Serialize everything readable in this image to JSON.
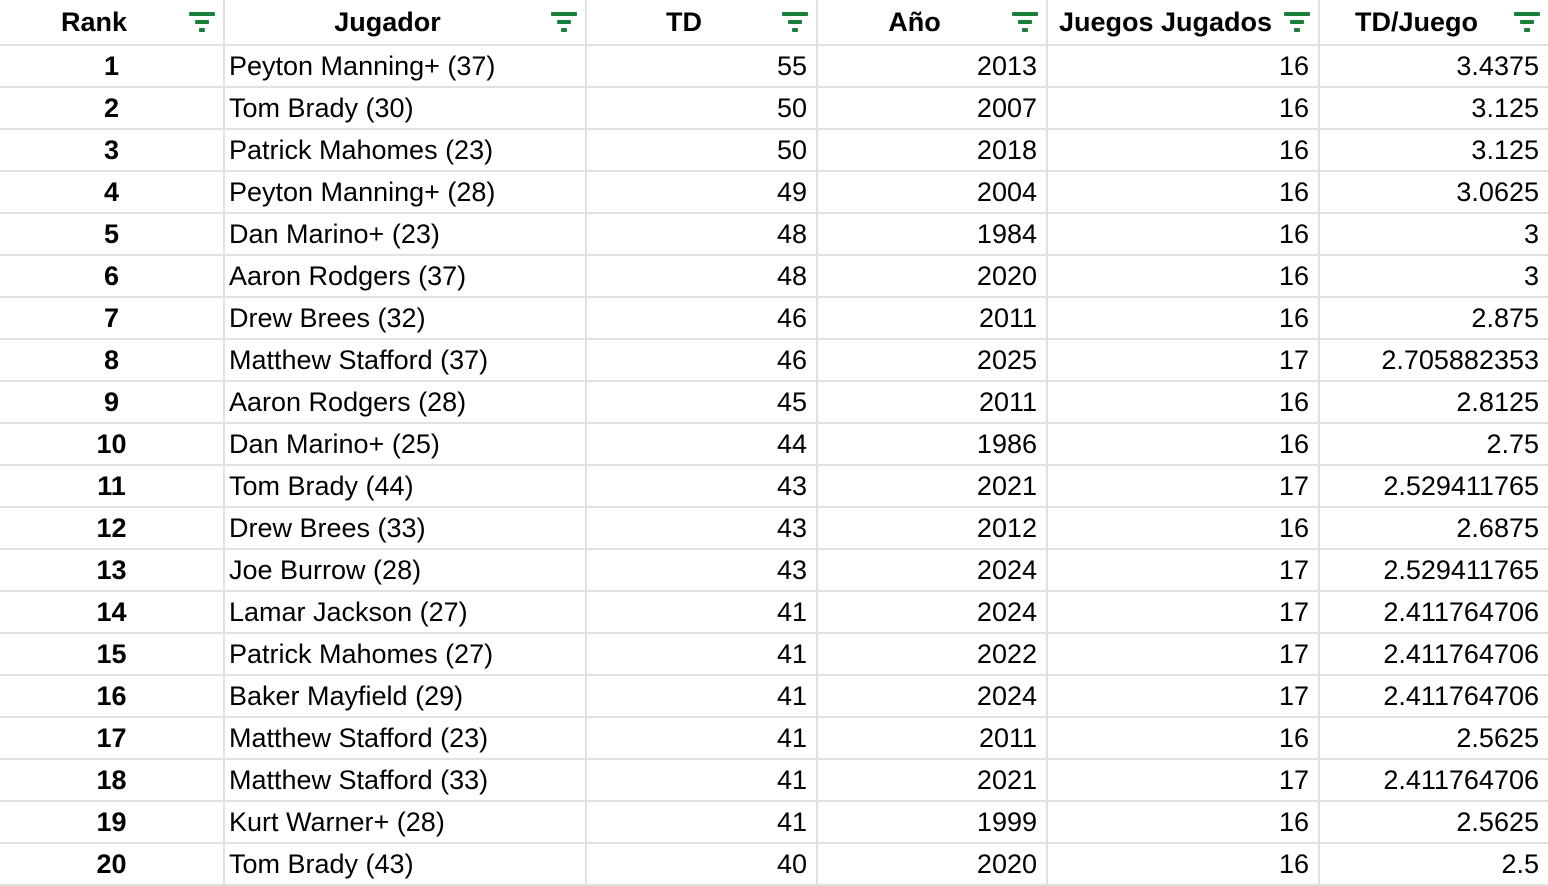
{
  "colors": {
    "filter_icon_green": "#188038",
    "gridline": "#e1e1e1",
    "text": "#000000",
    "background": "#ffffff"
  },
  "table": {
    "columns": [
      {
        "key": "rank",
        "label": "Rank",
        "align": "center"
      },
      {
        "key": "player",
        "label": "Jugador",
        "align": "left"
      },
      {
        "key": "td",
        "label": "TD",
        "align": "right"
      },
      {
        "key": "year",
        "label": "Año",
        "align": "right"
      },
      {
        "key": "games",
        "label": "Juegos Jugados",
        "align": "right"
      },
      {
        "key": "td_per_game",
        "label": "TD/Juego",
        "align": "right"
      }
    ],
    "rows": [
      {
        "rank": "1",
        "player": "Peyton Manning+ (37)",
        "td": "55",
        "year": "2013",
        "games": "16",
        "td_per_game": "3.4375"
      },
      {
        "rank": "2",
        "player": "Tom Brady (30)",
        "td": "50",
        "year": "2007",
        "games": "16",
        "td_per_game": "3.125"
      },
      {
        "rank": "3",
        "player": "Patrick Mahomes (23)",
        "td": "50",
        "year": "2018",
        "games": "16",
        "td_per_game": "3.125"
      },
      {
        "rank": "4",
        "player": "Peyton Manning+ (28)",
        "td": "49",
        "year": "2004",
        "games": "16",
        "td_per_game": "3.0625"
      },
      {
        "rank": "5",
        "player": "Dan Marino+ (23)",
        "td": "48",
        "year": "1984",
        "games": "16",
        "td_per_game": "3"
      },
      {
        "rank": "6",
        "player": "Aaron Rodgers (37)",
        "td": "48",
        "year": "2020",
        "games": "16",
        "td_per_game": "3"
      },
      {
        "rank": "7",
        "player": "Drew Brees (32)",
        "td": "46",
        "year": "2011",
        "games": "16",
        "td_per_game": "2.875"
      },
      {
        "rank": "8",
        "player": "Matthew Stafford (37)",
        "td": "46",
        "year": "2025",
        "games": "17",
        "td_per_game": "2.705882353"
      },
      {
        "rank": "9",
        "player": "Aaron Rodgers (28)",
        "td": "45",
        "year": "2011",
        "games": "16",
        "td_per_game": "2.8125"
      },
      {
        "rank": "10",
        "player": "Dan Marino+ (25)",
        "td": "44",
        "year": "1986",
        "games": "16",
        "td_per_game": "2.75"
      },
      {
        "rank": "11",
        "player": "Tom Brady (44)",
        "td": "43",
        "year": "2021",
        "games": "17",
        "td_per_game": "2.529411765"
      },
      {
        "rank": "12",
        "player": "Drew Brees (33)",
        "td": "43",
        "year": "2012",
        "games": "16",
        "td_per_game": "2.6875"
      },
      {
        "rank": "13",
        "player": "Joe Burrow (28)",
        "td": "43",
        "year": "2024",
        "games": "17",
        "td_per_game": "2.529411765"
      },
      {
        "rank": "14",
        "player": "Lamar Jackson (27)",
        "td": "41",
        "year": "2024",
        "games": "17",
        "td_per_game": "2.411764706"
      },
      {
        "rank": "15",
        "player": "Patrick Mahomes (27)",
        "td": "41",
        "year": "2022",
        "games": "17",
        "td_per_game": "2.411764706"
      },
      {
        "rank": "16",
        "player": "Baker Mayfield (29)",
        "td": "41",
        "year": "2024",
        "games": "17",
        "td_per_game": "2.411764706"
      },
      {
        "rank": "17",
        "player": "Matthew Stafford (23)",
        "td": "41",
        "year": "2011",
        "games": "16",
        "td_per_game": "2.5625"
      },
      {
        "rank": "18",
        "player": "Matthew Stafford (33)",
        "td": "41",
        "year": "2021",
        "games": "17",
        "td_per_game": "2.411764706"
      },
      {
        "rank": "19",
        "player": "Kurt Warner+ (28)",
        "td": "41",
        "year": "1999",
        "games": "16",
        "td_per_game": "2.5625"
      },
      {
        "rank": "20",
        "player": "Tom Brady (43)",
        "td": "40",
        "year": "2020",
        "games": "16",
        "td_per_game": "2.5"
      }
    ]
  }
}
